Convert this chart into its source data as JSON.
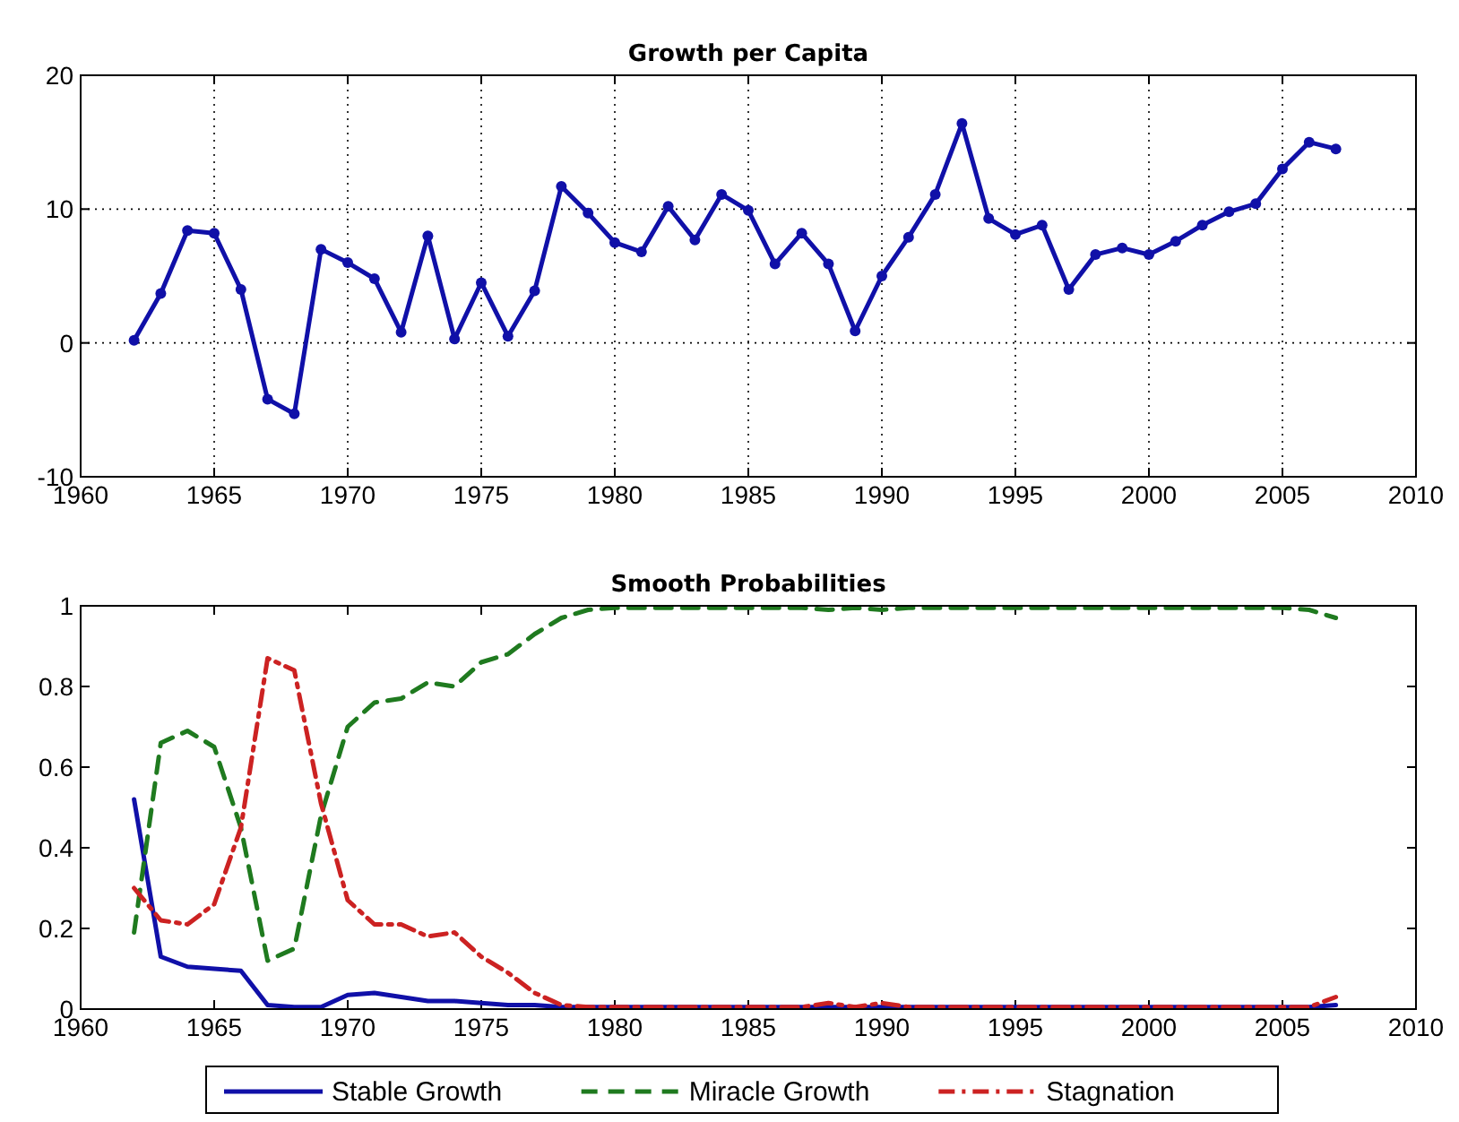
{
  "chart_data": [
    {
      "type": "line",
      "title": "Growth per Capita",
      "x": [
        1962,
        1963,
        1964,
        1965,
        1966,
        1967,
        1968,
        1969,
        1970,
        1971,
        1972,
        1973,
        1974,
        1975,
        1976,
        1977,
        1978,
        1979,
        1980,
        1981,
        1982,
        1983,
        1984,
        1985,
        1986,
        1987,
        1988,
        1989,
        1990,
        1991,
        1992,
        1993,
        1994,
        1995,
        1996,
        1997,
        1998,
        1999,
        2000,
        2001,
        2002,
        2003,
        2004,
        2005,
        2006,
        2007
      ],
      "series": [
        {
          "color": "#1010a8",
          "values": [
            0.2,
            3.7,
            8.4,
            8.2,
            4,
            -4.2,
            -5.3,
            7,
            6,
            4.8,
            0.8,
            8,
            0.3,
            4.5,
            0.5,
            3.9,
            11.7,
            9.7,
            7.5,
            6.8,
            10.2,
            7.7,
            11.1,
            9.9,
            5.9,
            8.2,
            5.9,
            0.9,
            5,
            7.9,
            11.1,
            16.4,
            9.3,
            8.1,
            8.8,
            4,
            6.6,
            7.1,
            6.6,
            7.6,
            8.8,
            9.8,
            10.4,
            13,
            15,
            14.5
          ]
        }
      ],
      "xlim": [
        1960,
        2010
      ],
      "xticks": [
        1960,
        1965,
        1970,
        1975,
        1980,
        1985,
        1990,
        1995,
        2000,
        2005,
        2010
      ],
      "ylim": [
        -10,
        20
      ],
      "yticks": [
        -10,
        0,
        10,
        20
      ],
      "grid": true,
      "marker": "circle",
      "line_style": "solid"
    },
    {
      "type": "line",
      "title": "Smooth Probabilities",
      "x": [
        1962,
        1963,
        1964,
        1965,
        1966,
        1967,
        1968,
        1969,
        1970,
        1971,
        1972,
        1973,
        1974,
        1975,
        1976,
        1977,
        1978,
        1979,
        1980,
        1981,
        1982,
        1983,
        1984,
        1985,
        1986,
        1987,
        1988,
        1989,
        1990,
        1991,
        1992,
        1993,
        1994,
        1995,
        1996,
        1997,
        1998,
        1999,
        2000,
        2001,
        2002,
        2003,
        2004,
        2005,
        2006,
        2007
      ],
      "series": [
        {
          "name": "Stable Growth",
          "color": "#1010a8",
          "line_style": "solid",
          "values": [
            0.52,
            0.13,
            0.105,
            0.1,
            0.095,
            0.01,
            0.005,
            0.005,
            0.035,
            0.04,
            0.03,
            0.02,
            0.02,
            0.015,
            0.01,
            0.01,
            0.005,
            0.005,
            0.005,
            0.005,
            0.005,
            0.005,
            0.005,
            0.005,
            0.005,
            0.005,
            0.005,
            0.005,
            0.005,
            0.005,
            0.005,
            0.005,
            0.005,
            0.005,
            0.005,
            0.005,
            0.005,
            0.005,
            0.005,
            0.005,
            0.005,
            0.005,
            0.005,
            0.005,
            0.005,
            0.01
          ]
        },
        {
          "name": "Miracle Growth",
          "color": "#1f7a1f",
          "line_style": "dashed",
          "values": [
            0.19,
            0.66,
            0.69,
            0.65,
            0.45,
            0.12,
            0.15,
            0.48,
            0.7,
            0.76,
            0.77,
            0.81,
            0.8,
            0.86,
            0.88,
            0.93,
            0.97,
            0.99,
            0.995,
            0.995,
            0.995,
            0.995,
            0.995,
            0.995,
            0.995,
            0.995,
            0.99,
            0.995,
            0.99,
            0.995,
            0.995,
            0.995,
            0.995,
            0.995,
            0.995,
            0.995,
            0.995,
            0.995,
            0.995,
            0.995,
            0.995,
            0.995,
            0.995,
            0.995,
            0.99,
            0.97
          ]
        },
        {
          "name": "Stagnation",
          "color": "#cc2222",
          "line_style": "dashdot",
          "values": [
            0.3,
            0.22,
            0.21,
            0.26,
            0.45,
            0.87,
            0.84,
            0.51,
            0.27,
            0.21,
            0.21,
            0.18,
            0.19,
            0.13,
            0.09,
            0.04,
            0.01,
            0.005,
            0.005,
            0.005,
            0.005,
            0.005,
            0.005,
            0.005,
            0.005,
            0.005,
            0.015,
            0.005,
            0.015,
            0.005,
            0.005,
            0.005,
            0.005,
            0.005,
            0.005,
            0.005,
            0.005,
            0.005,
            0.005,
            0.005,
            0.005,
            0.005,
            0.005,
            0.005,
            0.005,
            0.03
          ]
        }
      ],
      "xlim": [
        1960,
        2010
      ],
      "xticks": [
        1960,
        1965,
        1970,
        1975,
        1980,
        1985,
        1990,
        1995,
        2000,
        2005,
        2010
      ],
      "ylim": [
        0,
        1
      ],
      "yticks": [
        0,
        0.2,
        0.4,
        0.6,
        0.8,
        1
      ],
      "grid": false,
      "legend": "bottom"
    }
  ]
}
